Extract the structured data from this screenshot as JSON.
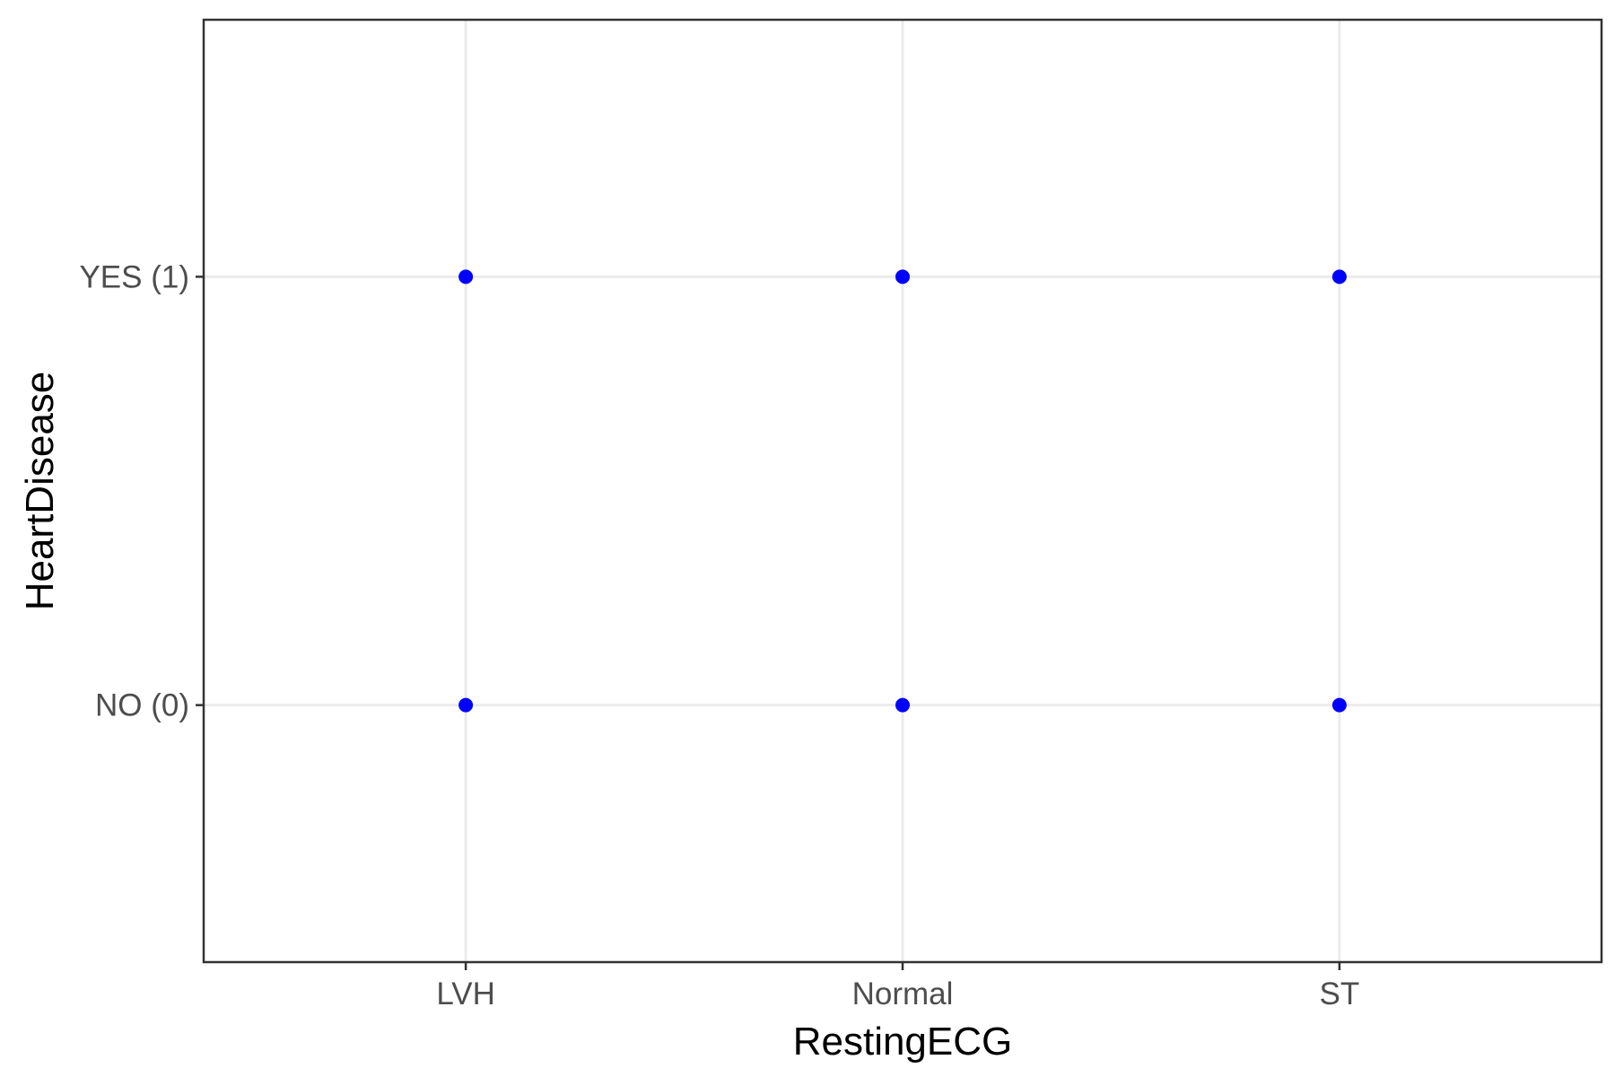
{
  "chart_data": {
    "type": "scatter",
    "title": "",
    "xlabel": "RestingECG",
    "ylabel": "HeartDisease",
    "x_categories": [
      "LVH",
      "Normal",
      "ST"
    ],
    "y_categories": [
      "NO (0)",
      "YES (1)"
    ],
    "points": [
      {
        "x": "LVH",
        "y": "YES (1)"
      },
      {
        "x": "Normal",
        "y": "YES (1)"
      },
      {
        "x": "ST",
        "y": "YES (1)"
      },
      {
        "x": "LVH",
        "y": "NO (0)"
      },
      {
        "x": "Normal",
        "y": "NO (0)"
      },
      {
        "x": "ST",
        "y": "NO (0)"
      }
    ],
    "point_color": "#0000ff",
    "grid": true,
    "legend": "none"
  },
  "colors": {
    "background": "#ffffff",
    "grid": "#ebebeb",
    "axis": "#333333",
    "tick_text": "#4d4d4d"
  }
}
